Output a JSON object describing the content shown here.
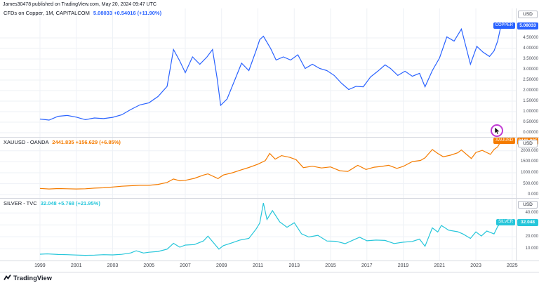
{
  "header": {
    "attribution": "James30478 published on TradingView.com, May 20, 2024 09:47 UTC"
  },
  "footer": {
    "brand": "TradingView"
  },
  "panes": [
    {
      "legend": {
        "title": "CFDs on Copper, 1M, CAPITALCOM",
        "values": "5.08033 +0.54016 (+11.90%)"
      },
      "axis": {
        "currency": "USD"
      }
    },
    {
      "legend": {
        "title": "XAUUSD - OANDA",
        "values": "2441.835 +156.629 (+6.85%)"
      },
      "axis": {
        "currency": "USD"
      }
    },
    {
      "legend": {
        "title": "SILVER - TVC",
        "values": "32.048 +5.768 (+21.95%)"
      },
      "axis": {
        "currency": "USD"
      }
    }
  ],
  "time_axis": {
    "range": [
      1996.8,
      2025.2
    ],
    "labels": [
      "1999",
      "2001",
      "2003",
      "2005",
      "2007",
      "2009",
      "2011",
      "2013",
      "2015",
      "2017",
      "2019",
      "2021",
      "2023",
      "2025"
    ]
  },
  "chart_data": [
    {
      "type": "line",
      "title": "CFDs on Copper, 1M, CAPITALCOM",
      "symbol": "COPPER",
      "color": "#2962ff",
      "currency": "USD",
      "last_label": "5.08033",
      "ylim": [
        -0.2,
        5.9
      ],
      "yticks": [
        0,
        0.5,
        1,
        1.5,
        2,
        2.5,
        3,
        3.5,
        4,
        4.5
      ],
      "ytick_labels": [
        "0.00000",
        "0.50000",
        "1.00000",
        "1.50000",
        "2.00000",
        "2.50000",
        "3.00000",
        "3.50000",
        "4.00000",
        "4.50000"
      ],
      "x": [
        1999.0,
        1999.5,
        2000.0,
        2000.5,
        2001.0,
        2001.5,
        2002.0,
        2002.5,
        2003.0,
        2003.5,
        2004.0,
        2004.5,
        2005.0,
        2005.5,
        2006.0,
        2006.35,
        2006.7,
        2007.0,
        2007.4,
        2007.8,
        2008.2,
        2008.5,
        2008.75,
        2008.95,
        2009.3,
        2009.7,
        2010.1,
        2010.5,
        2010.9,
        2011.1,
        2011.3,
        2011.7,
        2012.0,
        2012.4,
        2012.8,
        2013.2,
        2013.6,
        2014.0,
        2014.4,
        2014.8,
        2015.2,
        2015.6,
        2016.0,
        2016.4,
        2016.8,
        2017.2,
        2017.6,
        2018.0,
        2018.3,
        2018.7,
        2019.1,
        2019.5,
        2019.9,
        2020.2,
        2020.6,
        2021.0,
        2021.4,
        2021.8,
        2022.2,
        2022.45,
        2022.7,
        2023.05,
        2023.4,
        2023.75,
        2024.0,
        2024.2,
        2024.38
      ],
      "values": [
        0.65,
        0.6,
        0.78,
        0.82,
        0.74,
        0.62,
        0.7,
        0.67,
        0.73,
        0.85,
        1.1,
        1.32,
        1.42,
        1.72,
        2.2,
        3.95,
        3.4,
        2.85,
        3.6,
        3.25,
        3.6,
        3.95,
        2.6,
        1.3,
        1.6,
        2.45,
        3.3,
        2.95,
        3.9,
        4.42,
        4.58,
        4.0,
        3.45,
        3.6,
        3.45,
        3.7,
        3.05,
        3.25,
        3.05,
        2.95,
        2.72,
        2.35,
        2.05,
        2.2,
        2.18,
        2.65,
        2.92,
        3.22,
        3.05,
        2.72,
        2.92,
        2.68,
        2.82,
        2.18,
        2.95,
        3.55,
        4.55,
        4.35,
        4.92,
        4.1,
        3.25,
        4.1,
        3.82,
        3.62,
        3.88,
        4.35,
        5.08
      ]
    },
    {
      "type": "line",
      "title": "XAUUSD - OANDA",
      "symbol": "XAUUSD",
      "color": "#f57c00",
      "currency": "USD",
      "last_label": "2441.835",
      "ylim": [
        -150,
        2600
      ],
      "yticks": [
        0,
        500,
        1000,
        1500,
        2000
      ],
      "ytick_labels": [
        "0.000",
        "500.000",
        "1000.000",
        "1500.000",
        "2000.000"
      ],
      "x": [
        1999.0,
        1999.5,
        2000.0,
        2000.5,
        2001.0,
        2001.5,
        2002.0,
        2002.5,
        2003.0,
        2003.5,
        2004.0,
        2004.5,
        2005.0,
        2005.5,
        2006.0,
        2006.35,
        2006.7,
        2007.0,
        2007.5,
        2008.0,
        2008.25,
        2008.8,
        2009.1,
        2009.6,
        2010.0,
        2010.5,
        2011.0,
        2011.4,
        2011.65,
        2011.95,
        2012.3,
        2012.75,
        2013.1,
        2013.5,
        2014.0,
        2014.5,
        2015.0,
        2015.5,
        2015.95,
        2016.5,
        2016.95,
        2017.4,
        2017.8,
        2018.2,
        2018.65,
        2019.0,
        2019.5,
        2019.95,
        2020.2,
        2020.6,
        2020.9,
        2021.2,
        2021.6,
        2022.0,
        2022.2,
        2022.75,
        2023.0,
        2023.35,
        2023.8,
        2024.0,
        2024.2,
        2024.38
      ],
      "values": [
        288,
        262,
        282,
        272,
        264,
        272,
        300,
        318,
        350,
        388,
        408,
        428,
        428,
        470,
        560,
        715,
        635,
        655,
        745,
        895,
        950,
        735,
        900,
        1000,
        1110,
        1240,
        1390,
        1550,
        1880,
        1620,
        1780,
        1700,
        1600,
        1235,
        1300,
        1220,
        1265,
        1095,
        1062,
        1340,
        1150,
        1255,
        1290,
        1340,
        1200,
        1290,
        1510,
        1560,
        1680,
        2060,
        1880,
        1730,
        1800,
        1910,
        2040,
        1650,
        1925,
        2020,
        1840,
        2060,
        2180,
        2441.8
      ]
    },
    {
      "type": "line",
      "title": "SILVER - TVC",
      "symbol": "SILVER",
      "color": "#26c6da",
      "currency": "USD",
      "last_label": "32.048",
      "ylim": [
        0,
        52
      ],
      "yticks": [
        10,
        20,
        30,
        40
      ],
      "ytick_labels": [
        "10.000",
        "20.000",
        "30.000",
        "40.000"
      ],
      "x": [
        1999.0,
        1999.4,
        2000.0,
        2000.5,
        2001.0,
        2001.5,
        2002.0,
        2002.5,
        2003.0,
        2003.5,
        2004.0,
        2004.3,
        2004.7,
        2005.0,
        2005.5,
        2006.0,
        2006.35,
        2006.7,
        2007.0,
        2007.5,
        2008.0,
        2008.25,
        2008.85,
        2009.1,
        2009.6,
        2010.0,
        2010.5,
        2010.9,
        2011.1,
        2011.3,
        2011.5,
        2011.8,
        2012.2,
        2012.6,
        2013.0,
        2013.4,
        2013.8,
        2014.3,
        2014.8,
        2015.3,
        2015.8,
        2016.3,
        2016.6,
        2017.0,
        2017.5,
        2018.0,
        2018.5,
        2019.0,
        2019.5,
        2019.9,
        2020.2,
        2020.6,
        2020.9,
        2021.1,
        2021.5,
        2022.0,
        2022.3,
        2022.7,
        2023.0,
        2023.3,
        2023.6,
        2024.0,
        2024.2,
        2024.38
      ],
      "values": [
        5.3,
        5.6,
        5.1,
        4.9,
        4.6,
        4.35,
        4.55,
        4.9,
        4.7,
        5.2,
        6.4,
        8.2,
        6.3,
        7.0,
        7.6,
        9.6,
        14.5,
        11.2,
        13.0,
        13.4,
        16.5,
        20.5,
        9.6,
        12.5,
        15.0,
        17.2,
        18.6,
        26.5,
        31.5,
        48.4,
        34.5,
        42.0,
        32.5,
        28.0,
        31.8,
        22.5,
        19.8,
        21.2,
        16.4,
        16.2,
        14.2,
        17.6,
        19.6,
        16.6,
        17.2,
        16.9,
        14.3,
        15.4,
        16.1,
        18.0,
        12.0,
        27.5,
        24.0,
        29.5,
        25.5,
        24.2,
        22.3,
        18.6,
        24.1,
        20.6,
        24.8,
        22.4,
        28.6,
        32.05
      ]
    }
  ]
}
